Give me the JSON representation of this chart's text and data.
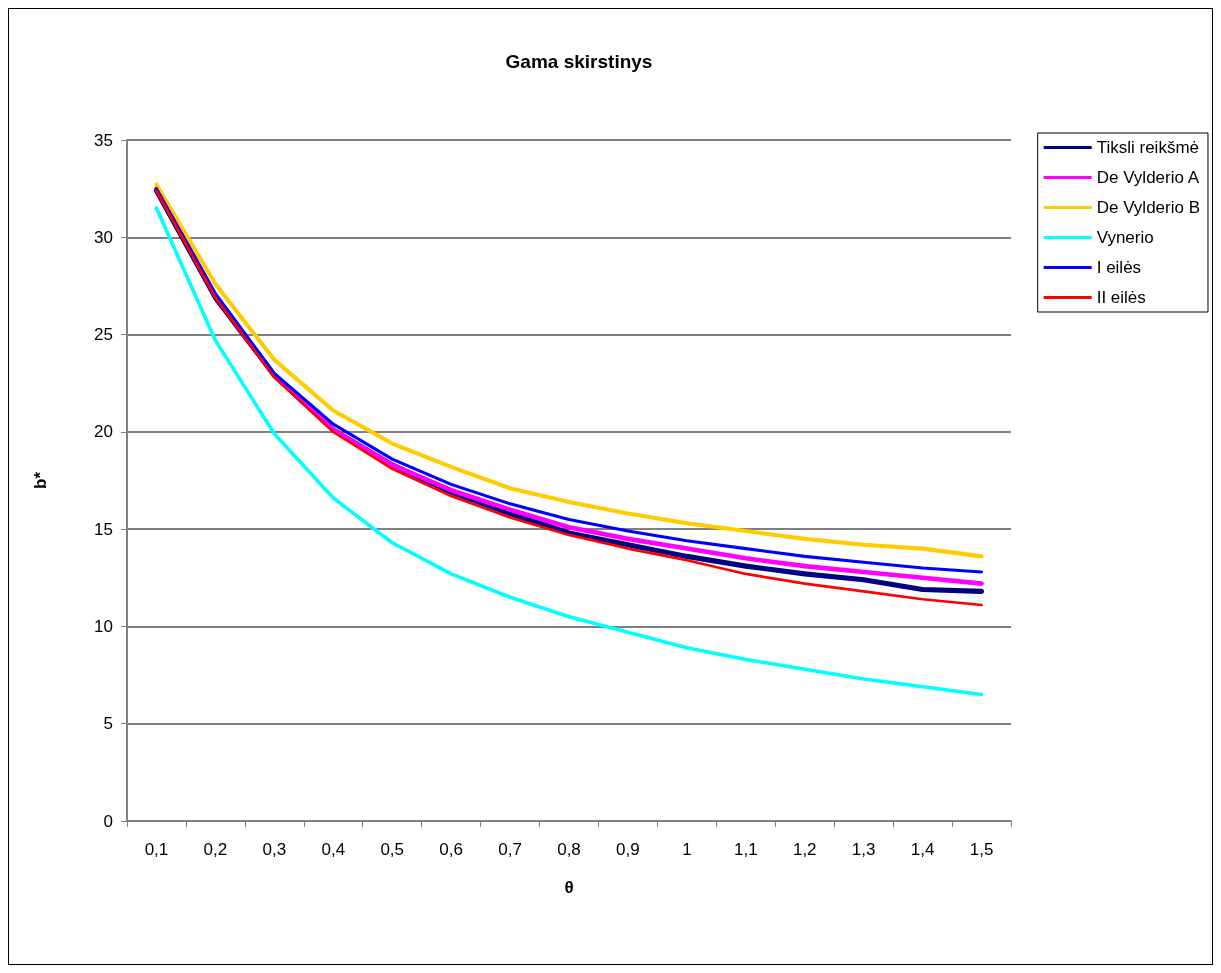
{
  "chart_data": {
    "type": "line",
    "title": "Gama skirstinys",
    "xlabel": "θ",
    "ylabel": "b*",
    "categories": [
      "0,1",
      "0,2",
      "0,3",
      "0,4",
      "0,5",
      "0,6",
      "0,7",
      "0,8",
      "0,9",
      "1",
      "1,1",
      "1,2",
      "1,3",
      "1,4",
      "1,5"
    ],
    "ylim": [
      0,
      35
    ],
    "yticks": [
      0,
      5,
      10,
      15,
      20,
      25,
      30,
      35
    ],
    "grid": "y",
    "legend": "top right",
    "marker": "none",
    "line_style": "solid",
    "series": [
      {
        "name": "Tiksli reikšmė",
        "color": "#000080",
        "values": [
          32.4,
          26.9,
          22.9,
          20.1,
          18.3,
          16.9,
          15.8,
          14.8,
          14.2,
          13.6,
          13.1,
          12.7,
          12.4,
          11.9,
          11.8
        ]
      },
      {
        "name": "De Vylderio A",
        "color": "#ff00ff",
        "values": [
          32.5,
          27.0,
          22.9,
          20.1,
          18.3,
          17.0,
          16.0,
          15.1,
          14.5,
          14.0,
          13.5,
          13.1,
          12.8,
          12.5,
          12.2
        ]
      },
      {
        "name": "De Vylderio B",
        "color": "#ffcc00",
        "values": [
          32.7,
          27.6,
          23.7,
          21.1,
          19.4,
          18.2,
          17.1,
          16.4,
          15.8,
          15.3,
          14.9,
          14.5,
          14.2,
          14.0,
          13.6
        ]
      },
      {
        "name": "Vynerio",
        "color": "#00ffff",
        "values": [
          31.5,
          24.7,
          19.9,
          16.6,
          14.3,
          12.7,
          11.5,
          10.5,
          9.7,
          8.9,
          8.3,
          7.8,
          7.3,
          6.9,
          6.5
        ]
      },
      {
        "name": "I eilės",
        "color": "#0000ff",
        "values": [
          32.5,
          27.1,
          23.0,
          20.4,
          18.6,
          17.3,
          16.3,
          15.5,
          14.9,
          14.4,
          14.0,
          13.6,
          13.3,
          13.0,
          12.8
        ]
      },
      {
        "name": "II eilės",
        "color": "#ff0000",
        "values": [
          32.4,
          26.9,
          22.8,
          20.0,
          18.1,
          16.7,
          15.6,
          14.7,
          14.0,
          13.4,
          12.7,
          12.2,
          11.8,
          11.4,
          11.1
        ]
      }
    ]
  }
}
